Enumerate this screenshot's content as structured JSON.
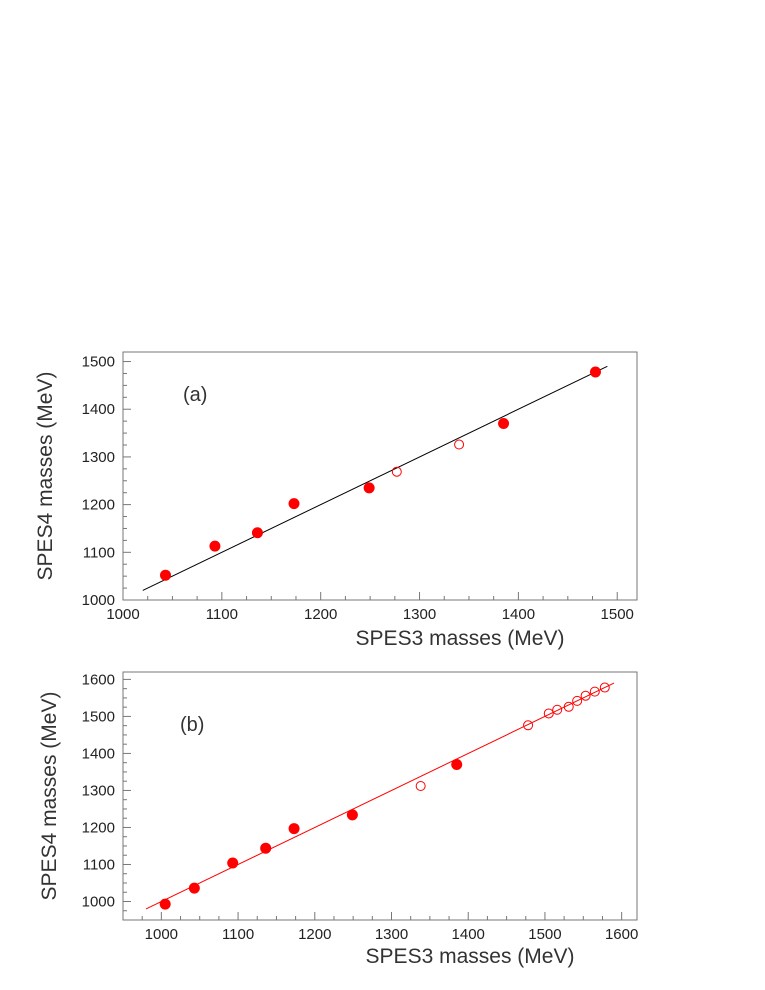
{
  "chart_data": [
    {
      "type": "scatter",
      "panel_label": "(a)",
      "xlabel": "SPES3 masses (MeV)",
      "ylabel": "SPES4 masses (MeV)",
      "xlim": [
        1000,
        1520
      ],
      "ylim": [
        1000,
        1520
      ],
      "xticks": [
        1000,
        1100,
        1200,
        1300,
        1400,
        1500
      ],
      "yticks": [
        1000,
        1100,
        1200,
        1300,
        1400,
        1500
      ],
      "fit_line": {
        "color": "#000000",
        "x": [
          1020,
          1490
        ],
        "y": [
          1020,
          1490
        ]
      },
      "series": [
        {
          "marker": "filled-circle",
          "color": "#ff0000",
          "x": [
            1043,
            1093,
            1136,
            1173,
            1249,
            1385,
            1478
          ],
          "y": [
            1052,
            1113,
            1141,
            1202,
            1235,
            1370,
            1478
          ]
        },
        {
          "marker": "open-circle",
          "color": "#ff0000",
          "x": [
            1277,
            1340
          ],
          "y": [
            1269,
            1326
          ]
        }
      ]
    },
    {
      "type": "scatter",
      "panel_label": "(b)",
      "xlabel": "SPES3  masses (MeV)",
      "ylabel": "SPES4 masses (MeV)",
      "xlim": [
        950,
        1620
      ],
      "ylim": [
        950,
        1620
      ],
      "xticks": [
        1000,
        1100,
        1200,
        1300,
        1400,
        1500,
        1600
      ],
      "yticks": [
        1000,
        1100,
        1200,
        1300,
        1400,
        1500,
        1600
      ],
      "fit_line": {
        "color": "#ff0000",
        "x": [
          980,
          1590
        ],
        "y": [
          980,
          1590
        ]
      },
      "series": [
        {
          "marker": "filled-circle",
          "color": "#ff0000",
          "x": [
            1005,
            1043,
            1093,
            1136,
            1173,
            1249,
            1385
          ],
          "y": [
            993,
            1036,
            1104,
            1144,
            1197,
            1234,
            1370
          ]
        },
        {
          "marker": "open-circle",
          "color": "#ff0000",
          "x": [
            1338,
            1478,
            1505,
            1516,
            1531,
            1542,
            1553,
            1565,
            1578
          ],
          "y": [
            1312,
            1476,
            1508,
            1518,
            1526,
            1542,
            1556,
            1567,
            1578
          ]
        }
      ]
    }
  ]
}
